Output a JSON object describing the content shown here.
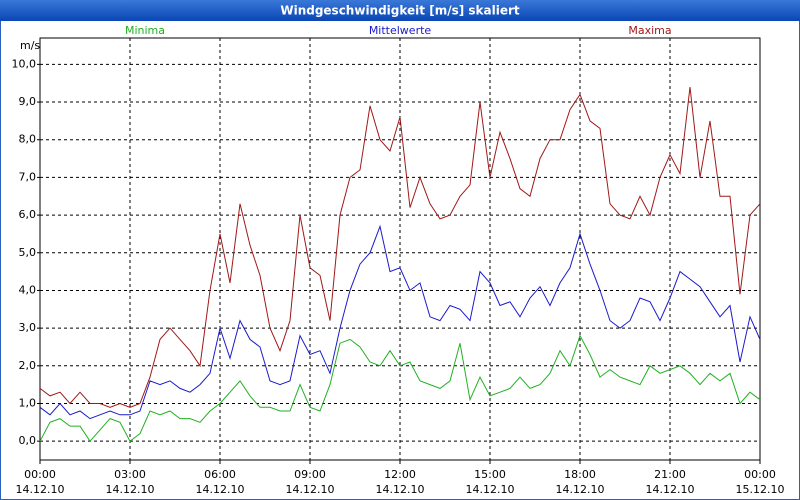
{
  "chart_data": {
    "type": "line",
    "title": "Windgeschwindigkeit [m/s] skaliert",
    "ylabel": "m/s",
    "xlim": [
      0,
      1440
    ],
    "xticks": [
      {
        "value": 0,
        "label": [
          "00:00",
          "14.12.10"
        ]
      },
      {
        "value": 180,
        "label": [
          "03:00",
          "14.12.10"
        ]
      },
      {
        "value": 360,
        "label": [
          "06:00",
          "14.12.10"
        ]
      },
      {
        "value": 540,
        "label": [
          "09:00",
          "14.12.10"
        ]
      },
      {
        "value": 720,
        "label": [
          "12:00",
          "14.12.10"
        ]
      },
      {
        "value": 900,
        "label": [
          "15:00",
          "14.12.10"
        ]
      },
      {
        "value": 1080,
        "label": [
          "18:00",
          "14.12.10"
        ]
      },
      {
        "value": 1260,
        "label": [
          "21:00",
          "14.12.10"
        ]
      },
      {
        "value": 1440,
        "label": [
          "00:00",
          "15.12.10"
        ]
      }
    ],
    "ylim": [
      -0.5,
      10.7
    ],
    "yticks": [
      {
        "value": 0,
        "label": "0,0"
      },
      {
        "value": 1,
        "label": "1,0"
      },
      {
        "value": 2,
        "label": "2,0"
      },
      {
        "value": 3,
        "label": "3,0"
      },
      {
        "value": 4,
        "label": "4,0"
      },
      {
        "value": 5,
        "label": "5,0"
      },
      {
        "value": 6,
        "label": "6,0"
      },
      {
        "value": 7,
        "label": "7,0"
      },
      {
        "value": 8,
        "label": "8,0"
      },
      {
        "value": 9,
        "label": "9,0"
      },
      {
        "value": 10,
        "label": "10,0"
      }
    ],
    "grid": true,
    "x": [
      0,
      20,
      40,
      60,
      80,
      100,
      120,
      140,
      160,
      180,
      200,
      220,
      240,
      260,
      280,
      300,
      320,
      340,
      360,
      380,
      400,
      420,
      440,
      460,
      480,
      500,
      520,
      540,
      560,
      580,
      600,
      620,
      640,
      660,
      680,
      700,
      720,
      740,
      760,
      780,
      800,
      820,
      840,
      860,
      880,
      900,
      920,
      940,
      960,
      980,
      1000,
      1020,
      1040,
      1060,
      1080,
      1100,
      1120,
      1140,
      1160,
      1180,
      1200,
      1220,
      1240,
      1260,
      1280,
      1300,
      1320,
      1340,
      1360,
      1380,
      1400,
      1420,
      1440
    ],
    "series": [
      {
        "name": "Minima",
        "color": "#22b022",
        "values": [
          0.0,
          0.5,
          0.6,
          0.4,
          0.4,
          0.0,
          0.3,
          0.6,
          0.5,
          0.0,
          0.2,
          0.8,
          0.7,
          0.8,
          0.6,
          0.6,
          0.5,
          0.8,
          1.0,
          1.3,
          1.6,
          1.2,
          0.9,
          0.9,
          0.8,
          0.8,
          1.5,
          0.9,
          0.8,
          1.5,
          2.6,
          2.7,
          2.5,
          2.1,
          2.0,
          2.4,
          2.0,
          2.1,
          1.6,
          1.5,
          1.4,
          1.6,
          2.6,
          1.1,
          1.7,
          1.2,
          1.3,
          1.4,
          1.7,
          1.4,
          1.5,
          1.8,
          2.4,
          2.0,
          2.8,
          2.3,
          1.7,
          1.9,
          1.7,
          1.6,
          1.5,
          2.0,
          1.8,
          1.9,
          2.0,
          1.8,
          1.5,
          1.8,
          1.6,
          1.8,
          1.0,
          1.3,
          1.1
        ]
      },
      {
        "name": "Mittelwerte",
        "color": "#1a1acc",
        "values": [
          0.9,
          0.7,
          1.0,
          0.7,
          0.8,
          0.6,
          0.7,
          0.8,
          0.7,
          0.7,
          0.8,
          1.6,
          1.5,
          1.6,
          1.4,
          1.3,
          1.5,
          1.8,
          3.0,
          2.2,
          3.2,
          2.7,
          2.5,
          1.6,
          1.5,
          1.6,
          2.8,
          2.3,
          2.4,
          1.8,
          3.0,
          4.0,
          4.7,
          5.0,
          5.7,
          4.5,
          4.6,
          4.0,
          4.2,
          3.3,
          3.2,
          3.6,
          3.5,
          3.2,
          4.5,
          4.2,
          3.6,
          3.7,
          3.3,
          3.8,
          4.1,
          3.6,
          4.2,
          4.6,
          5.5,
          4.7,
          4.0,
          3.2,
          3.0,
          3.2,
          3.8,
          3.7,
          3.2,
          3.8,
          4.5,
          4.3,
          4.1,
          3.7,
          3.3,
          3.6,
          2.1,
          3.3,
          2.7
        ]
      },
      {
        "name": "Maxima",
        "color": "#a01818",
        "values": [
          1.4,
          1.2,
          1.3,
          1.0,
          1.3,
          1.0,
          1.0,
          0.9,
          1.0,
          0.9,
          1.0,
          1.7,
          2.7,
          3.0,
          2.7,
          2.4,
          2.0,
          4.0,
          5.5,
          4.2,
          6.3,
          5.2,
          4.4,
          3.0,
          2.4,
          3.2,
          6.0,
          4.6,
          4.4,
          3.2,
          6.0,
          7.0,
          7.2,
          8.9,
          8.0,
          7.7,
          8.6,
          6.2,
          7.0,
          6.3,
          5.9,
          6.0,
          6.5,
          6.8,
          9.0,
          7.0,
          8.2,
          7.5,
          6.7,
          6.5,
          7.5,
          8.0,
          8.0,
          8.8,
          9.2,
          8.5,
          8.3,
          6.3,
          6.0,
          5.9,
          6.5,
          6.0,
          7.0,
          7.6,
          7.1,
          9.4,
          7.0,
          8.5,
          6.5,
          6.5,
          3.9,
          6.0,
          6.3
        ]
      }
    ]
  }
}
